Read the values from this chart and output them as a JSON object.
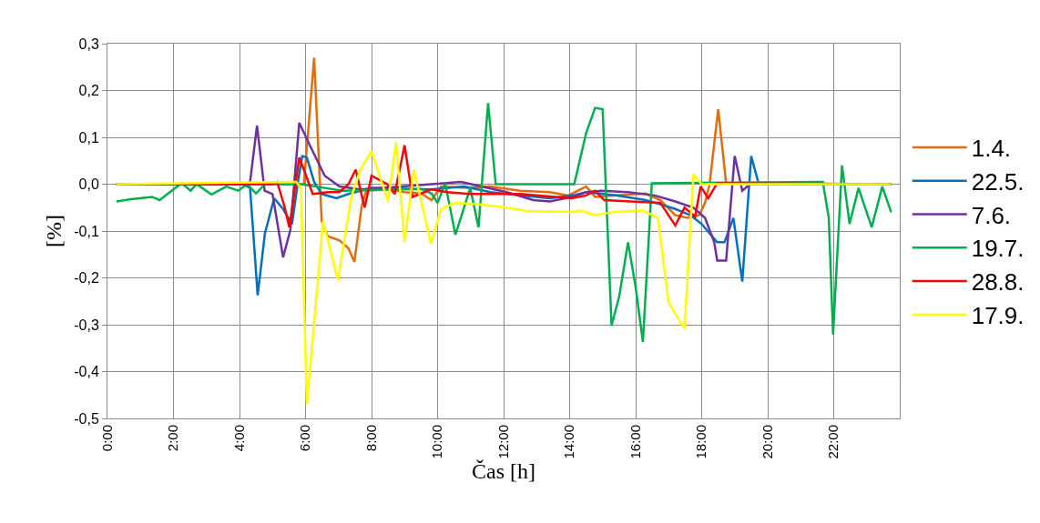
{
  "chart_data": {
    "type": "line",
    "xlabel": "Čas [h]",
    "ylabel": "[%]",
    "xlim": [
      0,
      24
    ],
    "xticks": [
      {
        "value": 0,
        "label": "0:00"
      },
      {
        "value": 2,
        "label": "2:00"
      },
      {
        "value": 4,
        "label": "4:00"
      },
      {
        "value": 6,
        "label": "6:00"
      },
      {
        "value": 8,
        "label": "8:00"
      },
      {
        "value": 10,
        "label": "10:00"
      },
      {
        "value": 12,
        "label": "12:00"
      },
      {
        "value": 14,
        "label": "14:00"
      },
      {
        "value": 16,
        "label": "16:00"
      },
      {
        "value": 18,
        "label": "18:00"
      },
      {
        "value": 20,
        "label": "20:00"
      },
      {
        "value": 22,
        "label": "22:00"
      }
    ],
    "ylim": [
      -0.5,
      0.3
    ],
    "yticks": [
      {
        "value": 0.3,
        "label": "0,3"
      },
      {
        "value": 0.2,
        "label": "0,2"
      },
      {
        "value": 0.1,
        "label": "0,1"
      },
      {
        "value": 0,
        "label": "0,0"
      },
      {
        "value": -0.1,
        "label": "-0,1"
      },
      {
        "value": -0.2,
        "label": "-0,2"
      },
      {
        "value": -0.3,
        "label": "-0,3"
      },
      {
        "value": -0.4,
        "label": "-0,4"
      },
      {
        "value": -0.5,
        "label": "-0,5"
      }
    ],
    "grid": true,
    "legend": "right",
    "marker": "none",
    "line_style": "solid",
    "series": [
      {
        "name": "1.4.",
        "color": "#e46c0a",
        "x": [
          0.27,
          5.95,
          6.26,
          6.49,
          6.67,
          7.03,
          7.3,
          7.48,
          7.7,
          7.84,
          8.47,
          8.99,
          9.5,
          9.82,
          10.1,
          10.9,
          11.6,
          12.5,
          13.4,
          13.96,
          14.5,
          14.77,
          15.4,
          16.3,
          16.75,
          17.2,
          17.57,
          17.93,
          18.1,
          18.24,
          18.5,
          18.74,
          23.74
        ],
        "values": [
          0,
          0,
          0.27,
          -0.079,
          -0.111,
          -0.12,
          -0.137,
          -0.166,
          -0.047,
          -0.014,
          -0.01,
          -0.017,
          -0.02,
          -0.034,
          -0.005,
          -0.008,
          -0.005,
          -0.014,
          -0.017,
          -0.024,
          -0.005,
          -0.027,
          -0.024,
          -0.02,
          -0.034,
          -0.066,
          -0.072,
          -0.066,
          -0.04,
          0,
          0.16,
          0.002,
          0
        ]
      },
      {
        "name": "22.5.",
        "color": "#0070c0",
        "x": [
          0.27,
          4.1,
          4.32,
          4.55,
          4.77,
          5.05,
          5.32,
          5.59,
          5.77,
          5.9,
          6.04,
          6.26,
          6.49,
          6.94,
          7.3,
          8.0,
          9.8,
          10.8,
          11.6,
          12.5,
          13.4,
          14.1,
          14.5,
          15.4,
          16.3,
          16.75,
          17.2,
          17.66,
          18.0,
          18.47,
          18.69,
          18.96,
          19.23,
          19.5,
          19.73,
          23.74
        ],
        "values": [
          0,
          0,
          -0.008,
          -0.237,
          -0.105,
          -0.03,
          -0.053,
          -0.085,
          0.005,
          0.06,
          0.057,
          0.005,
          -0.021,
          -0.03,
          -0.021,
          -0.008,
          -0.011,
          -0.005,
          -0.017,
          -0.024,
          -0.03,
          -0.024,
          -0.017,
          -0.024,
          -0.034,
          -0.043,
          -0.053,
          -0.066,
          -0.085,
          -0.124,
          -0.124,
          -0.072,
          -0.208,
          0.06,
          0,
          0
        ]
      },
      {
        "name": "7.6.",
        "color": "#7030a0",
        "x": [
          0.27,
          4.2,
          4.32,
          4.53,
          4.76,
          5.0,
          5.32,
          5.54,
          5.81,
          6.13,
          6.58,
          7.03,
          7.66,
          8.9,
          10.18,
          10.7,
          12.1,
          12.9,
          13.4,
          14.1,
          14.5,
          14.95,
          15.77,
          16.58,
          17.2,
          17.75,
          18.1,
          18.38,
          18.47,
          18.74,
          19.0,
          19.23,
          19.46,
          23.74
        ],
        "values": [
          0,
          0,
          0.005,
          0.125,
          -0.014,
          -0.021,
          -0.156,
          -0.098,
          0.131,
          0.083,
          0.018,
          -0.005,
          -0.011,
          -0.005,
          0.002,
          0.005,
          -0.017,
          -0.034,
          -0.037,
          -0.027,
          -0.017,
          -0.014,
          -0.017,
          -0.024,
          -0.037,
          -0.05,
          -0.072,
          -0.124,
          -0.163,
          -0.163,
          0.06,
          -0.014,
          0,
          0
        ]
      },
      {
        "name": "19.7.",
        "color": "#00b050",
        "x": [
          0.27,
          0.72,
          1.35,
          1.58,
          1.89,
          2.25,
          2.52,
          2.7,
          3.15,
          3.6,
          3.96,
          4.23,
          4.5,
          4.77,
          5.86,
          6.58,
          7.12,
          9.5,
          9.82,
          10.0,
          10.23,
          10.54,
          10.99,
          11.24,
          11.53,
          11.76,
          14.14,
          14.5,
          14.77,
          15.0,
          15.27,
          15.5,
          15.77,
          16.0,
          16.22,
          16.49,
          21.67,
          21.85,
          21.98,
          22.25,
          22.48,
          22.75,
          23.15,
          23.47,
          23.74
        ],
        "values": [
          -0.037,
          -0.032,
          -0.027,
          -0.034,
          -0.017,
          0.002,
          -0.014,
          0,
          -0.022,
          -0.005,
          -0.014,
          0,
          -0.02,
          0,
          0,
          -0.008,
          -0.014,
          -0.01,
          -0.02,
          -0.04,
          0.002,
          -0.108,
          -0.008,
          -0.092,
          0.173,
          0,
          0,
          0.109,
          0.163,
          0.16,
          -0.302,
          -0.24,
          -0.124,
          -0.22,
          -0.337,
          0.002,
          0.005,
          -0.072,
          -0.321,
          0.04,
          -0.085,
          -0.008,
          -0.092,
          -0.005,
          -0.06
        ]
      },
      {
        "name": "28.8.",
        "color": "#ff0000",
        "x": [
          0.27,
          5.0,
          5.14,
          5.36,
          5.51,
          5.81,
          5.95,
          6.22,
          6.67,
          7.03,
          7.3,
          7.52,
          7.79,
          8.0,
          8.47,
          8.7,
          9.0,
          9.24,
          9.82,
          10.27,
          10.99,
          12.5,
          14.05,
          14.5,
          14.77,
          15.05,
          15.86,
          16.75,
          17.2,
          17.48,
          17.8,
          17.97,
          18.2,
          18.47,
          23.74
        ],
        "values": [
          0,
          0,
          0.005,
          -0.047,
          -0.092,
          0.057,
          0.031,
          -0.021,
          -0.017,
          -0.017,
          0,
          0.031,
          -0.05,
          0.018,
          0,
          -0.021,
          0.083,
          -0.027,
          -0.011,
          -0.017,
          -0.021,
          -0.021,
          -0.03,
          -0.024,
          -0.014,
          -0.034,
          -0.037,
          -0.04,
          -0.088,
          -0.05,
          -0.069,
          -0.005,
          -0.03,
          0.002,
          0
        ]
      },
      {
        "name": "17.9.",
        "color": "#ffff00",
        "x": [
          0.27,
          5.72,
          5.86,
          6.04,
          6.53,
          6.98,
          7.39,
          7.66,
          8.0,
          8.5,
          8.74,
          9.0,
          9.28,
          9.8,
          10.1,
          10.54,
          11.26,
          12.07,
          12.8,
          14.14,
          14.32,
          14.77,
          15.4,
          16.22,
          16.67,
          17.0,
          17.48,
          17.75,
          18.0,
          23.74
        ],
        "values": [
          0,
          0.005,
          -0.008,
          -0.47,
          -0.079,
          -0.205,
          -0.027,
          0.031,
          0.07,
          -0.037,
          0.089,
          -0.124,
          0.031,
          -0.127,
          -0.053,
          -0.04,
          -0.043,
          -0.05,
          -0.058,
          -0.059,
          -0.056,
          -0.066,
          -0.059,
          -0.056,
          -0.072,
          -0.253,
          -0.308,
          0.021,
          0,
          0
        ]
      }
    ]
  }
}
